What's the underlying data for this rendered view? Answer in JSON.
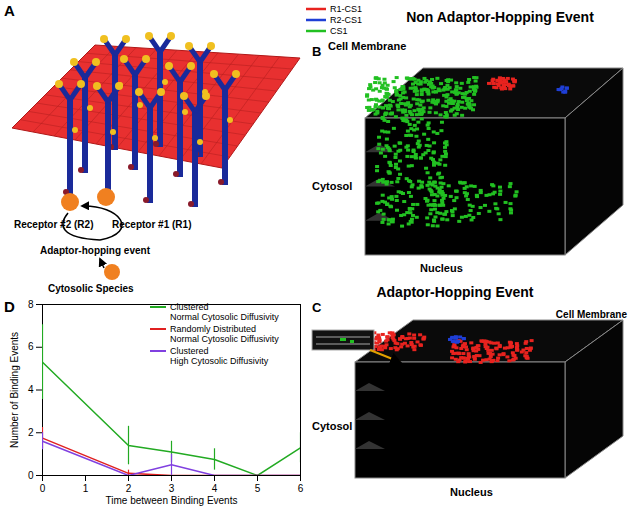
{
  "panels": {
    "A": {
      "label": "A",
      "legend": [
        {
          "name": "R1-CS1",
          "color": "#e8231f"
        },
        {
          "name": "R2-CS1",
          "color": "#1f3fd6"
        },
        {
          "name": "CS1",
          "color": "#22c022"
        }
      ],
      "receptor2": "Receptor #2 (R2)",
      "receptor1": "Receptor #1 (R1)",
      "event": "Adaptor-hopping event",
      "species": "Cytosolic Species"
    },
    "B": {
      "label": "B",
      "title": "Non Adaptor-Hopping Event",
      "membrane": "Cell Membrane",
      "cytosol": "Cytosol",
      "nucleus": "Nucleus"
    },
    "C": {
      "label": "C",
      "title": "Adaptor-Hopping Event",
      "membrane": "Cell Membrane",
      "cytosol": "Cytosol",
      "nucleus": "Nucleus"
    },
    "D": {
      "label": "D"
    }
  },
  "chart_data": {
    "type": "line",
    "xlabel": "Time between Binding Events",
    "ylabel": "Number of Binding Events",
    "x": [
      0,
      2,
      3,
      4,
      5,
      6
    ],
    "xlim": [
      0,
      6
    ],
    "xticks": [
      0,
      1,
      2,
      3,
      4,
      5,
      6
    ],
    "ylim": [
      0,
      8
    ],
    "yticks": [
      0,
      2,
      4,
      6,
      8
    ],
    "legend": "top-right",
    "series": [
      {
        "name": "Clustered\nNormal Cytosolic Diffusivity",
        "color": "#22aa22",
        "values": [
          5.3,
          1.4,
          1.1,
          0.75,
          0,
          1.3
        ],
        "errors": [
          1.75,
          0.9,
          0.5,
          0.5,
          0,
          0.7
        ]
      },
      {
        "name": "Randomly Distributed\nNormal Cytosolic Diffusivity",
        "color": "#e02020",
        "values": [
          1.75,
          0.1,
          0,
          0,
          0,
          0
        ],
        "errors": [
          0.5,
          0.15,
          0,
          0,
          0,
          0
        ]
      },
      {
        "name": "Clustered\nHigh Cytosolic Diffusivity",
        "color": "#8040e0",
        "values": [
          1.6,
          0,
          0.5,
          0,
          0,
          0
        ],
        "errors": [
          0.4,
          0,
          0.5,
          0,
          0,
          0
        ]
      }
    ]
  }
}
